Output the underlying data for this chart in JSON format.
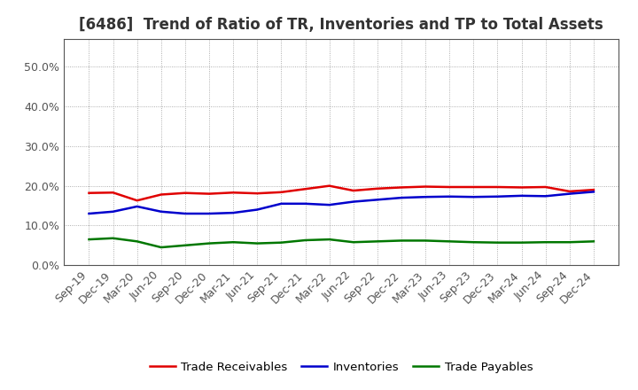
{
  "title": "[6486]  Trend of Ratio of TR, Inventories and TP to Total Assets",
  "x_labels": [
    "Sep-19",
    "Dec-19",
    "Mar-20",
    "Jun-20",
    "Sep-20",
    "Dec-20",
    "Mar-21",
    "Jun-21",
    "Sep-21",
    "Dec-21",
    "Mar-22",
    "Jun-22",
    "Sep-22",
    "Dec-22",
    "Mar-23",
    "Jun-23",
    "Sep-23",
    "Dec-23",
    "Mar-24",
    "Jun-24",
    "Sep-24",
    "Dec-24"
  ],
  "trade_receivables": [
    0.182,
    0.183,
    0.163,
    0.178,
    0.182,
    0.18,
    0.183,
    0.181,
    0.184,
    0.192,
    0.2,
    0.188,
    0.193,
    0.196,
    0.198,
    0.197,
    0.197,
    0.197,
    0.196,
    0.197,
    0.186,
    0.19
  ],
  "inventories": [
    0.13,
    0.135,
    0.148,
    0.135,
    0.13,
    0.13,
    0.132,
    0.14,
    0.155,
    0.155,
    0.152,
    0.16,
    0.165,
    0.17,
    0.172,
    0.173,
    0.172,
    0.173,
    0.175,
    0.174,
    0.18,
    0.185
  ],
  "trade_payables": [
    0.065,
    0.068,
    0.06,
    0.045,
    0.05,
    0.055,
    0.058,
    0.055,
    0.057,
    0.063,
    0.065,
    0.058,
    0.06,
    0.062,
    0.062,
    0.06,
    0.058,
    0.057,
    0.057,
    0.058,
    0.058,
    0.06
  ],
  "ylim": [
    0.0,
    0.57
  ],
  "yticks": [
    0.0,
    0.1,
    0.2,
    0.3,
    0.4,
    0.5
  ],
  "tr_color": "#e00000",
  "inv_color": "#0000cc",
  "tp_color": "#007700",
  "legend_labels": [
    "Trade Receivables",
    "Inventories",
    "Trade Payables"
  ],
  "background_color": "#ffffff",
  "title_color": "#333333",
  "title_fontsize": 12,
  "axis_fontsize": 9,
  "legend_fontsize": 9.5,
  "grid_color": "#999999",
  "tick_color": "#555555"
}
